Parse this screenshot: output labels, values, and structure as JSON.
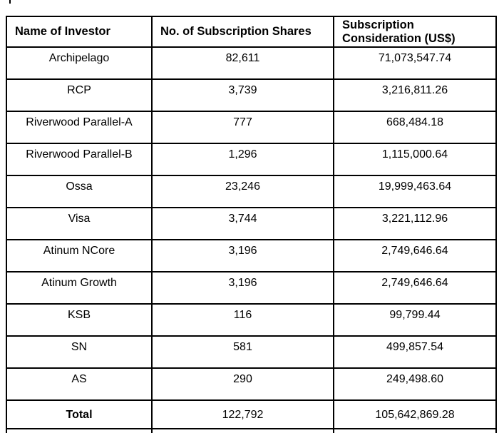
{
  "page": {
    "background_color": "#ffffff",
    "text_color": "#000000",
    "border_color": "#000000"
  },
  "table": {
    "columns": [
      {
        "label": "Name of Investor"
      },
      {
        "label": "No. of Subscription Shares"
      },
      {
        "label": "Subscription Consideration (US$)"
      }
    ],
    "rows": [
      {
        "investor": "Archipelago",
        "shares": "82,611",
        "consideration": "71,073,547.74"
      },
      {
        "investor": "RCP",
        "shares": "3,739",
        "consideration": "3,216,811.26"
      },
      {
        "investor": "Riverwood Parallel-A",
        "shares": "777",
        "consideration": "668,484.18"
      },
      {
        "investor": "Riverwood Parallel-B",
        "shares": "1,296",
        "consideration": "1,115,000.64"
      },
      {
        "investor": "Ossa",
        "shares": "23,246",
        "consideration": "19,999,463.64"
      },
      {
        "investor": "Visa",
        "shares": "3,744",
        "consideration": "3,221,112.96"
      },
      {
        "investor": "Atinum NCore",
        "shares": "3,196",
        "consideration": "2,749,646.64"
      },
      {
        "investor": "Atinum Growth",
        "shares": "3,196",
        "consideration": "2,749,646.64"
      },
      {
        "investor": "KSB",
        "shares": "116",
        "consideration": "99,799.44"
      },
      {
        "investor": "SN",
        "shares": "581",
        "consideration": "499,857.54"
      },
      {
        "investor": "AS",
        "shares": "290",
        "consideration": "249,498.60"
      }
    ],
    "total_row": {
      "investor": "Total",
      "shares": "122,792",
      "consideration": "105,642,869.28"
    }
  }
}
